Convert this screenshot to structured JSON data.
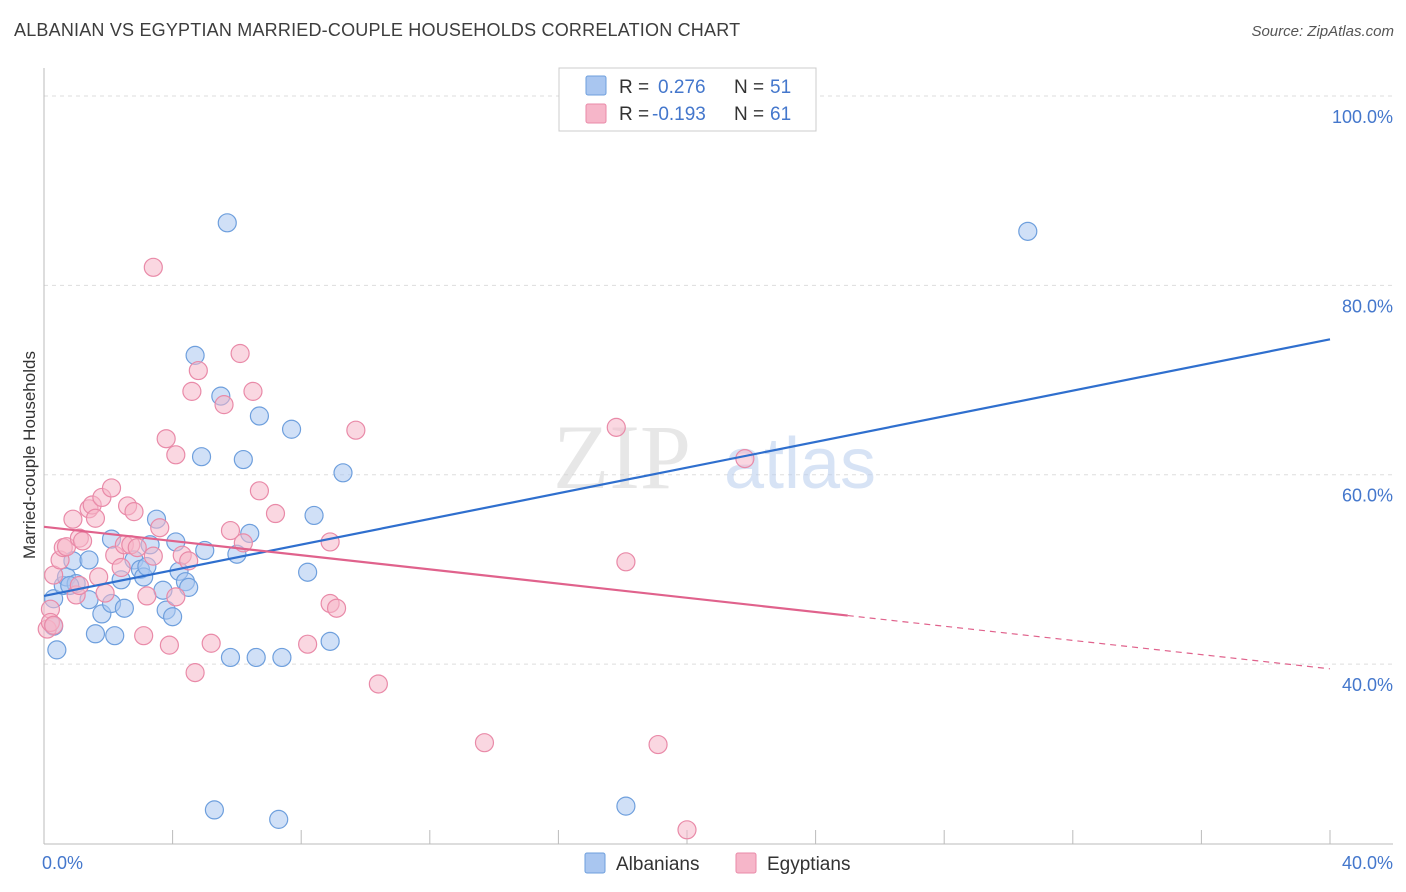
{
  "title": "ALBANIAN VS EGYPTIAN MARRIED-COUPLE HOUSEHOLDS CORRELATION CHART",
  "source": "Source: ZipAtlas.com",
  "watermark": {
    "zip": "ZIP",
    "atlas": "atlas"
  },
  "colors": {
    "albanian_fill": "#a9c6f0",
    "albanian_stroke": "#6e9fdd",
    "albanian_line": "#2f6fce",
    "egyptian_fill": "#f6b6c9",
    "egyptian_stroke": "#e98aa8",
    "egyptian_line": "#e0628c",
    "grid": "#dddddd",
    "tick_text": "#4477cc"
  },
  "legend_top": [
    {
      "r_label": "R =",
      "r_value": "0.276",
      "n_label": "N =",
      "n_value": "51"
    },
    {
      "r_label": "R =",
      "r_value": "-0.193",
      "n_label": "N =",
      "n_value": "61"
    }
  ],
  "chart_data": {
    "type": "scatter",
    "title": "ALBANIAN VS EGYPTIAN MARRIED-COUPLE HOUSEHOLDS CORRELATION CHART",
    "xlabel": "",
    "ylabel": "Married-couple Households",
    "xlim": [
      0,
      40
    ],
    "ylim": [
      21,
      102
    ],
    "x_tick_labels": [
      "0.0%",
      "40.0%"
    ],
    "y_ticks": [
      40,
      60,
      80,
      100
    ],
    "y_tick_labels": [
      "40.0%",
      "60.0%",
      "80.0%",
      "100.0%"
    ],
    "legend": [
      "Albanians",
      "Egyptians"
    ],
    "series": [
      {
        "name": "Albanians",
        "trend": {
          "x": [
            0,
            40
          ],
          "y": [
            47.2,
            74.3
          ],
          "dashed_from": null
        },
        "points": [
          [
            0.3,
            46.9
          ],
          [
            0.3,
            44.0
          ],
          [
            0.4,
            41.5
          ],
          [
            0.6,
            48.3
          ],
          [
            0.7,
            49.2
          ],
          [
            0.9,
            50.9
          ],
          [
            1.0,
            48.5
          ],
          [
            1.4,
            51.0
          ],
          [
            1.4,
            46.8
          ],
          [
            1.6,
            43.2
          ],
          [
            1.8,
            45.3
          ],
          [
            2.1,
            46.4
          ],
          [
            2.2,
            43.0
          ],
          [
            2.4,
            48.9
          ],
          [
            2.5,
            45.9
          ],
          [
            2.1,
            53.2
          ],
          [
            2.8,
            51.0
          ],
          [
            3.0,
            50.0
          ],
          [
            3.1,
            49.2
          ],
          [
            3.3,
            52.6
          ],
          [
            3.5,
            55.3
          ],
          [
            3.7,
            47.8
          ],
          [
            3.8,
            45.7
          ],
          [
            4.0,
            45.0
          ],
          [
            4.1,
            52.9
          ],
          [
            4.2,
            49.8
          ],
          [
            4.4,
            48.7
          ],
          [
            4.5,
            48.1
          ],
          [
            4.7,
            72.6
          ],
          [
            4.9,
            61.9
          ],
          [
            5.0,
            52.0
          ],
          [
            5.3,
            24.6
          ],
          [
            5.5,
            68.3
          ],
          [
            5.7,
            86.6
          ],
          [
            5.8,
            40.7
          ],
          [
            6.0,
            51.6
          ],
          [
            6.2,
            61.6
          ],
          [
            6.4,
            53.8
          ],
          [
            6.6,
            40.7
          ],
          [
            6.7,
            66.2
          ],
          [
            7.3,
            23.6
          ],
          [
            7.4,
            40.7
          ],
          [
            7.7,
            64.8
          ],
          [
            8.2,
            49.7
          ],
          [
            8.4,
            55.7
          ],
          [
            8.9,
            42.4
          ],
          [
            9.3,
            60.2
          ],
          [
            18.1,
            25.0
          ],
          [
            30.6,
            85.7
          ],
          [
            0.8,
            48.3
          ],
          [
            3.2,
            50.3
          ]
        ]
      },
      {
        "name": "Egyptians",
        "trend": {
          "x": [
            0,
            40
          ],
          "y": [
            54.5,
            39.5
          ],
          "dashed_from": 25.0
        },
        "points": [
          [
            0.1,
            43.7
          ],
          [
            0.2,
            45.8
          ],
          [
            0.2,
            44.4
          ],
          [
            0.3,
            44.1
          ],
          [
            0.3,
            49.4
          ],
          [
            0.5,
            51.0
          ],
          [
            0.6,
            52.3
          ],
          [
            0.7,
            52.4
          ],
          [
            0.9,
            55.3
          ],
          [
            1.0,
            47.3
          ],
          [
            1.1,
            48.3
          ],
          [
            1.1,
            53.3
          ],
          [
            1.2,
            53.0
          ],
          [
            1.4,
            56.4
          ],
          [
            1.5,
            56.8
          ],
          [
            1.6,
            55.4
          ],
          [
            1.7,
            49.2
          ],
          [
            1.8,
            57.6
          ],
          [
            1.9,
            47.5
          ],
          [
            2.1,
            58.6
          ],
          [
            2.2,
            51.5
          ],
          [
            2.4,
            50.2
          ],
          [
            2.5,
            52.6
          ],
          [
            2.6,
            56.7
          ],
          [
            2.7,
            52.6
          ],
          [
            2.8,
            56.1
          ],
          [
            2.9,
            52.3
          ],
          [
            3.1,
            43.0
          ],
          [
            3.2,
            47.2
          ],
          [
            3.4,
            51.4
          ],
          [
            3.4,
            81.9
          ],
          [
            3.6,
            54.4
          ],
          [
            3.8,
            63.8
          ],
          [
            3.9,
            42.0
          ],
          [
            4.1,
            47.1
          ],
          [
            4.1,
            62.1
          ],
          [
            4.3,
            51.5
          ],
          [
            4.5,
            50.9
          ],
          [
            4.6,
            68.8
          ],
          [
            4.7,
            39.1
          ],
          [
            4.8,
            71.0
          ],
          [
            5.2,
            42.2
          ],
          [
            5.6,
            67.4
          ],
          [
            5.8,
            54.1
          ],
          [
            6.1,
            72.8
          ],
          [
            6.2,
            52.8
          ],
          [
            6.5,
            68.8
          ],
          [
            6.7,
            58.3
          ],
          [
            7.2,
            55.9
          ],
          [
            8.2,
            42.1
          ],
          [
            8.9,
            46.4
          ],
          [
            8.9,
            52.9
          ],
          [
            9.1,
            45.9
          ],
          [
            9.7,
            64.7
          ],
          [
            10.4,
            37.9
          ],
          [
            13.7,
            31.7
          ],
          [
            17.8,
            65.0
          ],
          [
            18.1,
            50.8
          ],
          [
            19.1,
            31.5
          ],
          [
            20.0,
            22.5
          ],
          [
            21.8,
            61.7
          ]
        ]
      }
    ]
  }
}
